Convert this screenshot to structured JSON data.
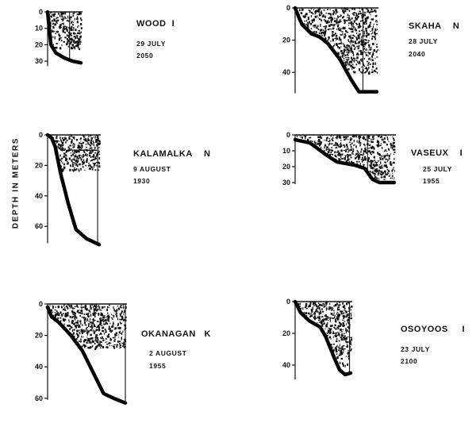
{
  "ylabel": "DEPTH IN METERS",
  "chart_data": [
    {
      "type": "area",
      "lake": "WOOD",
      "station": "I",
      "date": "29 JULY",
      "time": "2050",
      "yticks": [
        0,
        10,
        20,
        30
      ],
      "ylim": [
        0,
        31
      ],
      "bottom_profile": [
        [
          0,
          0
        ],
        [
          0.05,
          10
        ],
        [
          0.1,
          20
        ],
        [
          0.25,
          25
        ],
        [
          0.5,
          28
        ],
        [
          0.75,
          30
        ],
        [
          1,
          31
        ]
      ],
      "stipple_to_depth": 22
    },
    {
      "type": "area",
      "lake": "SKAHA",
      "station": "N",
      "date": "28 JULY",
      "time": "2040",
      "yticks": [
        0,
        20,
        40
      ],
      "ylim": [
        0,
        52
      ],
      "bottom_profile": [
        [
          0,
          0
        ],
        [
          0.08,
          10
        ],
        [
          0.2,
          16
        ],
        [
          0.3,
          18
        ],
        [
          0.4,
          22
        ],
        [
          0.55,
          32
        ],
        [
          0.68,
          44
        ],
        [
          0.78,
          52
        ],
        [
          1,
          52
        ]
      ],
      "stipple_to_depth": 40
    },
    {
      "type": "area",
      "lake": "KALAMALKA",
      "station": "N",
      "date": "9 AUGUST",
      "time": "1930",
      "yticks": [
        0,
        20,
        40,
        60
      ],
      "ylim": [
        0,
        72
      ],
      "bottom_profile": [
        [
          0,
          0
        ],
        [
          0.08,
          2
        ],
        [
          0.15,
          8
        ],
        [
          0.25,
          25
        ],
        [
          0.4,
          45
        ],
        [
          0.55,
          62
        ],
        [
          0.75,
          68
        ],
        [
          1,
          72
        ]
      ],
      "stipple_to_depth": 23,
      "layer_depth": 10
    },
    {
      "type": "area",
      "lake": "VASEUX",
      "station": "I",
      "date": "25 JULY",
      "time": "1955",
      "yticks": [
        0,
        10,
        20,
        30
      ],
      "ylim": [
        0,
        30
      ],
      "bottom_profile": [
        [
          0,
          3
        ],
        [
          0.15,
          5
        ],
        [
          0.3,
          12
        ],
        [
          0.42,
          17
        ],
        [
          0.6,
          19
        ],
        [
          0.7,
          21
        ],
        [
          0.78,
          28
        ],
        [
          0.85,
          30
        ],
        [
          1,
          30
        ]
      ],
      "stipple_to_depth": 28
    },
    {
      "type": "area",
      "lake": "OKANAGAN",
      "station": "K",
      "date": "2 AUGUST",
      "time": "1955",
      "yticks": [
        0,
        20,
        40,
        60
      ],
      "ylim": [
        0,
        63
      ],
      "bottom_profile": [
        [
          0,
          2
        ],
        [
          0.05,
          8
        ],
        [
          0.15,
          12
        ],
        [
          0.3,
          20
        ],
        [
          0.45,
          30
        ],
        [
          0.6,
          45
        ],
        [
          0.72,
          57
        ],
        [
          0.85,
          60
        ],
        [
          0.95,
          62
        ],
        [
          1,
          63
        ]
      ],
      "stipple_to_depth": 28
    },
    {
      "type": "area",
      "lake": "OSOYOOS",
      "station": "I",
      "date": "23 JULY",
      "time": "2100",
      "yticks": [
        0,
        20,
        40
      ],
      "ylim": [
        0,
        46
      ],
      "bottom_profile": [
        [
          0,
          0
        ],
        [
          0.1,
          7
        ],
        [
          0.25,
          12
        ],
        [
          0.45,
          16
        ],
        [
          0.55,
          22
        ],
        [
          0.7,
          35
        ],
        [
          0.8,
          43
        ],
        [
          0.9,
          46
        ],
        [
          1,
          45
        ]
      ],
      "stipple_to_depth": 40
    }
  ]
}
